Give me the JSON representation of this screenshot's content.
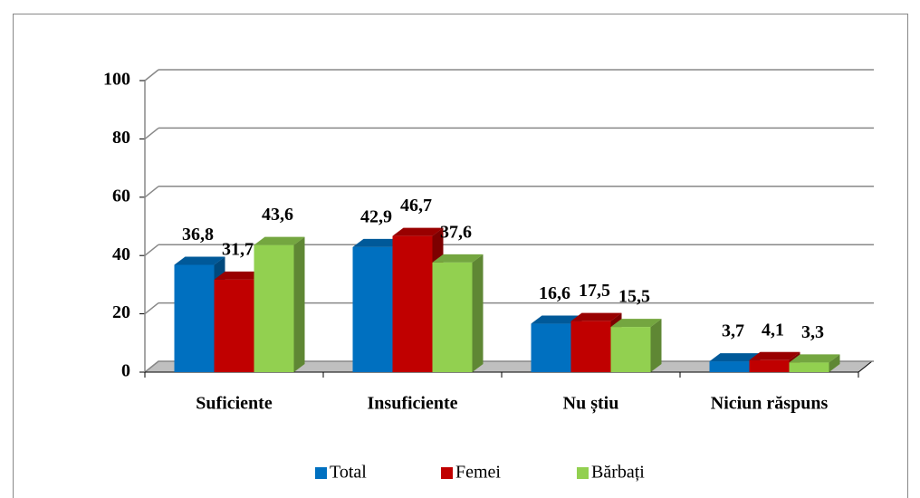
{
  "chart_data": {
    "type": "bar3d",
    "categories": [
      "Suficiente",
      "Insuficiente",
      "Nu știu",
      "Niciun răspuns"
    ],
    "series": [
      {
        "name": "Total",
        "color": "#0070c0",
        "values": [
          36.8,
          42.9,
          16.6,
          3.7
        ],
        "value_labels": [
          "36,8",
          "42,9",
          "16,6",
          "3,7"
        ]
      },
      {
        "name": "Femei",
        "color": "#c00000",
        "values": [
          31.7,
          46.7,
          17.5,
          4.1
        ],
        "value_labels": [
          "31,7",
          "46,7",
          "17,5",
          "4,1"
        ]
      },
      {
        "name": "Bărbați",
        "color": "#92d050",
        "values": [
          43.6,
          37.6,
          15.5,
          3.3
        ],
        "value_labels": [
          "43,6",
          "37,6",
          "15,5",
          "3,3"
        ]
      }
    ],
    "ylim": [
      0,
      100
    ],
    "yticks": [
      0,
      20,
      40,
      60,
      80,
      100
    ],
    "grid": true,
    "legend": "bottom"
  }
}
